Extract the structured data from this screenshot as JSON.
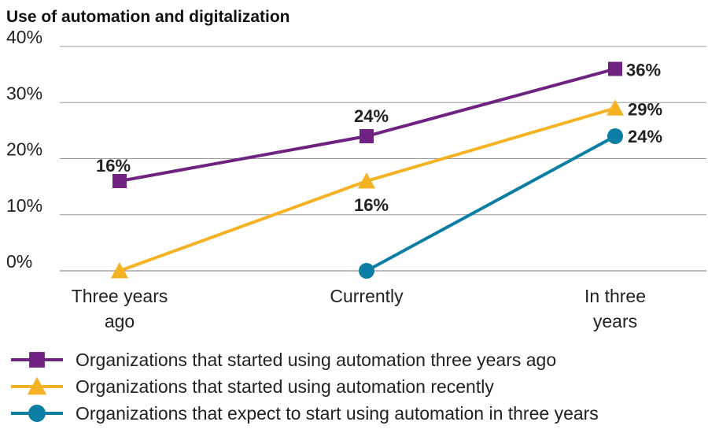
{
  "chart_data": {
    "type": "line",
    "title": "Use of automation and digitalization",
    "xlabel": "",
    "ylabel": "",
    "categories": [
      "Three years ago",
      "Currently",
      "In three years"
    ],
    "ylim": [
      0,
      40
    ],
    "yticks": [
      "0%",
      "10%",
      "20%",
      "30%",
      "40%"
    ],
    "grid": true,
    "legend_position": "bottom",
    "series": [
      {
        "name": "Organizations that started using automation three years ago",
        "values": [
          16,
          24,
          36
        ],
        "labels": [
          "16%",
          "24%",
          "36%"
        ],
        "color": "#6f2282",
        "marker": "square"
      },
      {
        "name": "Organizations that started using automation recently",
        "values": [
          0,
          16,
          29
        ],
        "labels": [
          "",
          "16%",
          "29%"
        ],
        "color": "#f5b324",
        "marker": "triangle"
      },
      {
        "name": "Organizations that expect to start using automation in three years",
        "values": [
          null,
          0,
          24
        ],
        "labels": [
          "",
          "",
          "24%"
        ],
        "color": "#0a7ea4",
        "marker": "circle"
      }
    ]
  }
}
